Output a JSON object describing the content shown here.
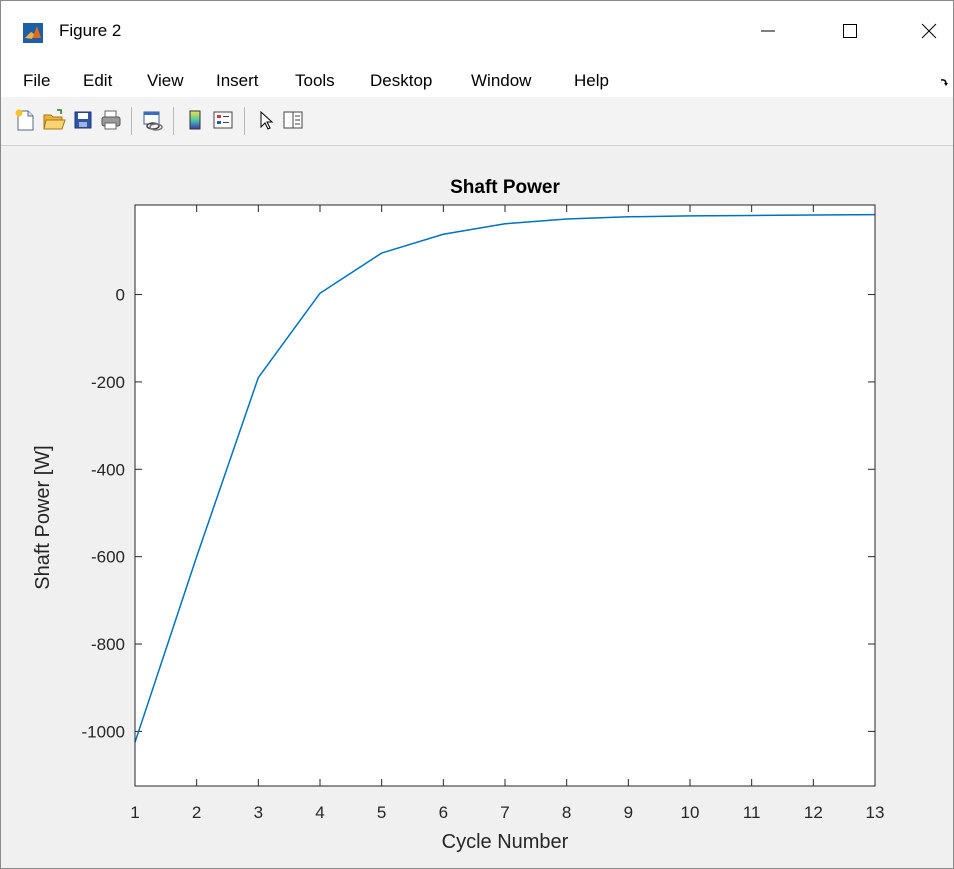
{
  "window": {
    "title": "Figure 2",
    "controls": {
      "minimize": "minimize",
      "maximize": "maximize",
      "close": "close"
    }
  },
  "menu": {
    "items": [
      {
        "id": "file",
        "label": "File"
      },
      {
        "id": "edit",
        "label": "Edit"
      },
      {
        "id": "view",
        "label": "View"
      },
      {
        "id": "insert",
        "label": "Insert"
      },
      {
        "id": "tools",
        "label": "Tools"
      },
      {
        "id": "desktop",
        "label": "Desktop"
      },
      {
        "id": "window",
        "label": "Window"
      },
      {
        "id": "help",
        "label": "Help"
      }
    ]
  },
  "toolbar": {
    "buttons": [
      {
        "id": "new",
        "icon": "new-figure-icon"
      },
      {
        "id": "open",
        "icon": "open-folder-icon"
      },
      {
        "id": "save",
        "icon": "save-icon"
      },
      {
        "id": "print",
        "icon": "print-icon"
      },
      {
        "id": "link",
        "icon": "link-plot-icon"
      },
      {
        "id": "colorbar",
        "icon": "colorbar-icon"
      },
      {
        "id": "legend",
        "icon": "legend-icon"
      },
      {
        "id": "pointer",
        "icon": "pointer-icon"
      },
      {
        "id": "propertyeditor",
        "icon": "property-editor-icon"
      }
    ]
  },
  "colors": {
    "line": "#0072bd",
    "axes_bg": "#ffffff",
    "figure_bg": "#f0f0f0",
    "tick_text": "#262626"
  },
  "chart_data": {
    "type": "line",
    "title": "Shaft Power",
    "xlabel": "Cycle Number",
    "ylabel": "Shaft Power [W]",
    "xlim": [
      1,
      13
    ],
    "ylim": [
      -1125,
      205
    ],
    "xticks": [
      1,
      2,
      3,
      4,
      5,
      6,
      7,
      8,
      9,
      10,
      11,
      12,
      13
    ],
    "yticks": [
      -1000,
      -800,
      -600,
      -400,
      -200,
      0
    ],
    "grid": false,
    "series": [
      {
        "x": [
          1,
          2,
          3,
          4,
          5,
          6,
          7,
          8,
          9,
          10,
          11,
          12,
          13
        ],
        "y": [
          -1025,
          -600,
          -190,
          3,
          95,
          138,
          162,
          173,
          178,
          180,
          181,
          182,
          183
        ]
      }
    ]
  }
}
